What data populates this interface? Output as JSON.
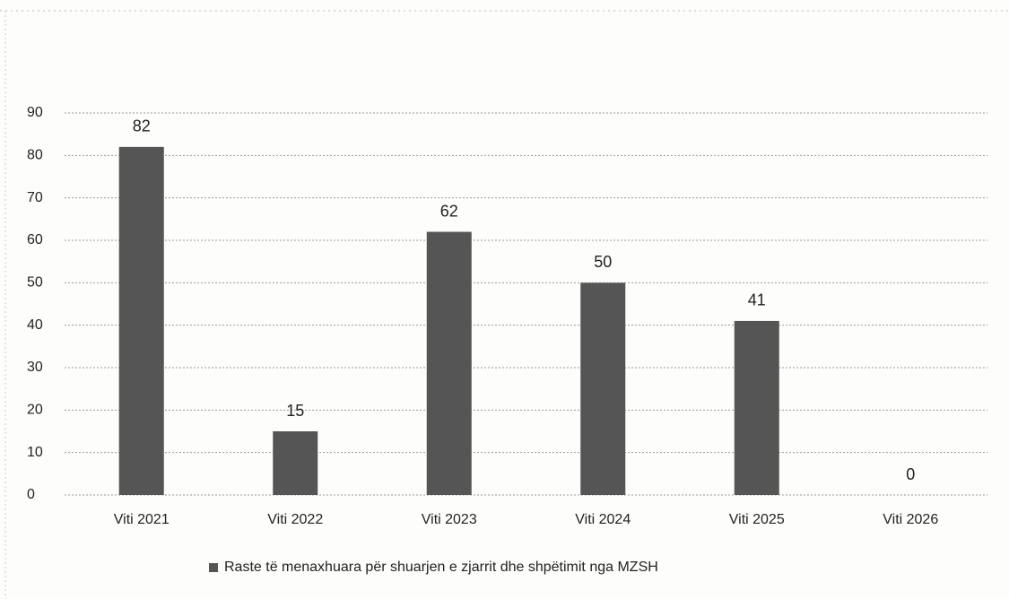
{
  "chart_data": {
    "type": "bar",
    "categories": [
      "Viti 2021",
      "Viti 2022",
      "Viti 2023",
      "Viti 2024",
      "Viti 2025",
      "Viti 2026"
    ],
    "series": [
      {
        "name": "Raste të menaxhuara për shuarjen e zjarrit dhe shpëtimit nga MZSH",
        "color": "#555555",
        "values": [
          82,
          15,
          62,
          50,
          41,
          0
        ]
      }
    ],
    "ylim": [
      0,
      90
    ],
    "yticks": [
      0,
      10,
      20,
      30,
      40,
      50,
      60,
      70,
      80,
      90
    ],
    "grid": true,
    "legend": "bottom"
  }
}
